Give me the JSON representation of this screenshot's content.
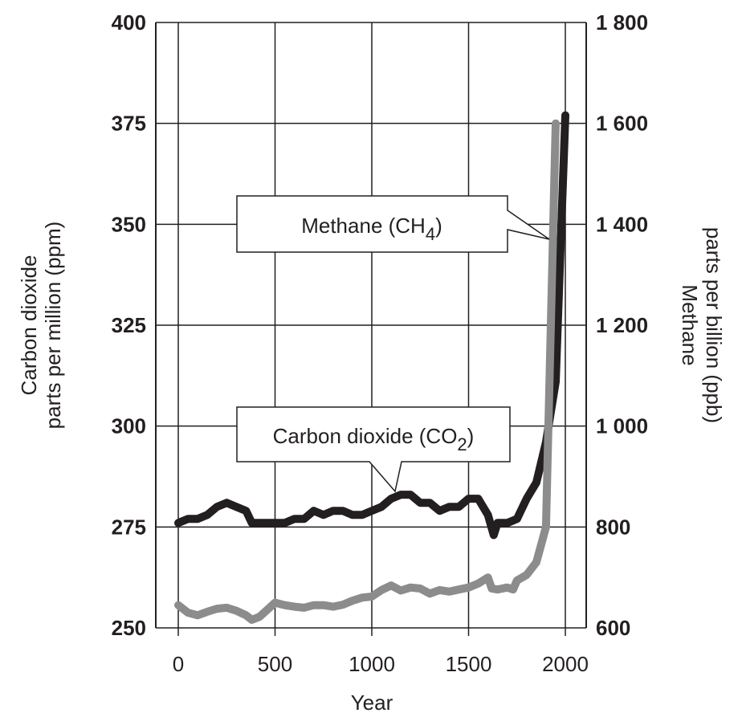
{
  "chart_data": {
    "type": "line",
    "title": "",
    "xlabel": "Year",
    "ylabel_left": [
      "Carbon dioxide",
      "parts per million (ppm)"
    ],
    "ylabel_right": [
      "Methane",
      "parts per billion (ppb)"
    ],
    "xlim": [
      0,
      2000
    ],
    "ylim_left": [
      250,
      400
    ],
    "ylim_right": [
      600,
      1800
    ],
    "grid": true,
    "x_ticks": [
      "0",
      "500",
      "1000",
      "1500",
      "2000"
    ],
    "y_ticks_left": [
      "250",
      "275",
      "300",
      "325",
      "350",
      "375",
      "400"
    ],
    "y_ticks_right": [
      "600",
      "800",
      "1 000",
      "1 200",
      "1 400",
      "1 600",
      "1 800"
    ],
    "callouts": {
      "methane": {
        "text": "Methane (CH",
        "sub": "4",
        "tail": ")"
      },
      "co2": {
        "text": "Carbon dioxide (CO",
        "sub": "2",
        "tail": ")"
      }
    },
    "series": [
      {
        "name": "Carbon dioxide (CO2)",
        "axis": "left",
        "color": "#231f20",
        "x": [
          0,
          50,
          100,
          150,
          200,
          250,
          300,
          350,
          380,
          420,
          500,
          550,
          600,
          650,
          700,
          750,
          800,
          850,
          900,
          950,
          1000,
          1050,
          1100,
          1150,
          1200,
          1250,
          1300,
          1350,
          1400,
          1450,
          1500,
          1550,
          1600,
          1630,
          1650,
          1700,
          1750,
          1800,
          1850,
          1900,
          1950,
          2000
        ],
        "values": [
          276,
          277,
          277,
          278,
          280,
          281,
          280,
          279,
          276,
          276,
          276,
          276,
          277,
          277,
          279,
          278,
          279,
          279,
          278,
          278,
          279,
          280,
          282,
          283,
          283,
          281,
          281,
          279,
          280,
          280,
          282,
          282,
          278,
          273,
          276,
          276,
          277,
          282,
          286,
          296,
          311,
          377
        ]
      },
      {
        "name": "Methane (CH4)",
        "axis": "right",
        "color": "#8c8c8c",
        "x": [
          0,
          50,
          100,
          150,
          200,
          250,
          300,
          350,
          380,
          420,
          500,
          550,
          600,
          650,
          700,
          750,
          800,
          850,
          900,
          950,
          1000,
          1050,
          1100,
          1150,
          1200,
          1250,
          1300,
          1350,
          1400,
          1450,
          1500,
          1550,
          1600,
          1620,
          1650,
          1700,
          1730,
          1750,
          1800,
          1850,
          1900,
          1950
        ],
        "values": [
          645,
          630,
          625,
          632,
          638,
          640,
          634,
          625,
          616,
          622,
          650,
          645,
          642,
          640,
          645,
          645,
          642,
          646,
          654,
          660,
          662,
          675,
          684,
          674,
          680,
          678,
          668,
          675,
          672,
          676,
          680,
          688,
          700,
          678,
          676,
          680,
          676,
          694,
          705,
          730,
          800,
          1600
        ]
      }
    ]
  }
}
